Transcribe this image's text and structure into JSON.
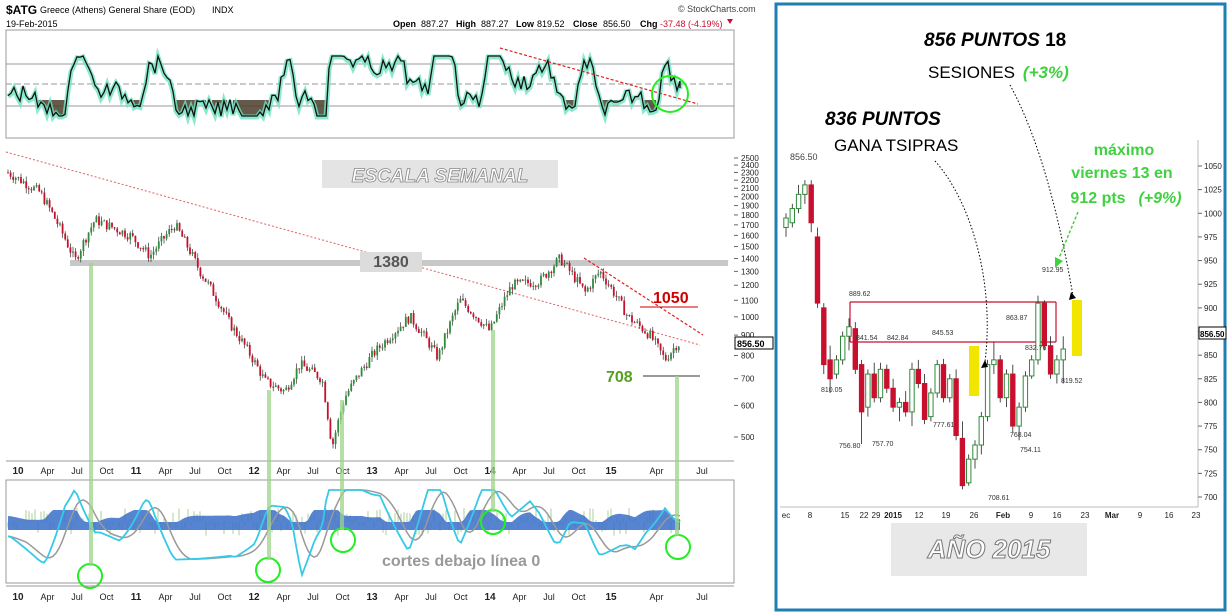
{
  "left_chart": {
    "symbol": "$ATG",
    "name": "Greece (Athens) General Share (EOD)",
    "exchange": "INDX",
    "date": "19-Feb-2015",
    "watermark": "© StockCharts.com",
    "quote": {
      "open_label": "Open",
      "open": "887.27",
      "high_label": "High",
      "high": "887.27",
      "low_label": "Low",
      "low": "819.52",
      "close_label": "Close",
      "close": "856.50",
      "chg_label": "Chg",
      "chg": "-37.48 (-4.19%)"
    },
    "overlay_title": "ESCALA SEMANAL",
    "level_1380": "1380",
    "level_1050": "1050",
    "level_708": "708",
    "macd_note": "cortes debajo línea 0",
    "last_price_tag": "856.50",
    "x_ticks": [
      "10",
      "Apr",
      "Jul",
      "Oct",
      "11",
      "Apr",
      "Jul",
      "Oct",
      "12",
      "Apr",
      "Jul",
      "Oct",
      "13",
      "Apr",
      "Jul",
      "Oct",
      "14",
      "Apr",
      "Jul",
      "Oct",
      "15",
      "Apr",
      "Jul"
    ],
    "y_ticks": [
      "2500",
      "2400",
      "2300",
      "2200",
      "2100",
      "2000",
      "1900",
      "1800",
      "1700",
      "1600",
      "1500",
      "1400",
      "1300",
      "1200",
      "1100",
      "1000",
      "900",
      "800",
      "700",
      "600",
      "500"
    ]
  },
  "right_chart": {
    "price_tag": "856.50",
    "top_price_label": "856.50",
    "annotation_856_bold": "856 PUNTOS",
    "annotation_856_rest": " 18",
    "annotation_856_line2": "SESIONES",
    "annotation_856_pct": "(+3%)",
    "annotation_836_bold": "836 PUNTOS",
    "annotation_836_line2": "GANA TSIPRAS",
    "annotation_max_1": "máximo",
    "annotation_max_2": "viernes 13 en",
    "annotation_max_3": "912 pts",
    "annotation_max_pct": "(+9%)",
    "caption": "AÑO 2015",
    "price_labels": [
      "889.62",
      "841.54",
      "842.84",
      "845.53",
      "863.87",
      "912.95",
      "832.76",
      "810.05",
      "756.80",
      "757.70",
      "777.61",
      "768.04",
      "754.11",
      "819.52",
      "708.61"
    ],
    "x_ticks": [
      "ec",
      "8",
      "15",
      "22",
      "29",
      "2015",
      "12",
      "19",
      "26",
      "Feb",
      "9",
      "16",
      "23",
      "Mar",
      "9",
      "16",
      "23"
    ],
    "y_ticks": [
      "1050",
      "1025",
      "1000",
      "975",
      "950",
      "925",
      "900",
      "875",
      "850",
      "825",
      "800",
      "775",
      "750",
      "725",
      "700"
    ]
  },
  "colors": {
    "up": "#2e8b3a",
    "down": "#c8102e",
    "green_accent": "#3fd13f",
    "frame_blue": "#1e7fb0",
    "yellow": "#f2e600"
  },
  "chart_data": [
    {
      "type": "candlestick",
      "title": "$ATG Greece (Athens) General Share (EOD) INDX",
      "scale": "log",
      "x": [
        "2010-01",
        "2010-04",
        "2010-07",
        "2010-10",
        "2011-01",
        "2011-04",
        "2011-07",
        "2011-10",
        "2012-01",
        "2012-04",
        "2012-07",
        "2012-10",
        "2013-01",
        "2013-04",
        "2013-07",
        "2013-10",
        "2014-01",
        "2014-04",
        "2014-07",
        "2014-10",
        "2015-01",
        "2015-02"
      ],
      "close_approx": [
        2250,
        2050,
        1620,
        1680,
        1500,
        1550,
        1250,
        950,
        760,
        670,
        610,
        750,
        950,
        1050,
        950,
        1050,
        1250,
        1300,
        1200,
        1100,
        850,
        856.5
      ],
      "ylim": [
        450,
        2500
      ],
      "annotations": [
        1380,
        1050,
        708
      ]
    },
    {
      "type": "candlestick",
      "title": "AÑO 2015",
      "x": [
        "Dec-8",
        "Dec-15",
        "Dec-22",
        "Dec-29",
        "Jan-05",
        "Jan-12",
        "Jan-19",
        "Jan-26",
        "Feb-02",
        "Feb-09",
        "Feb-16"
      ],
      "ylim": [
        700,
        1050
      ],
      "levels": [
        889.62,
        845.53
      ],
      "annotations": [
        836,
        856,
        912.95
      ]
    }
  ]
}
